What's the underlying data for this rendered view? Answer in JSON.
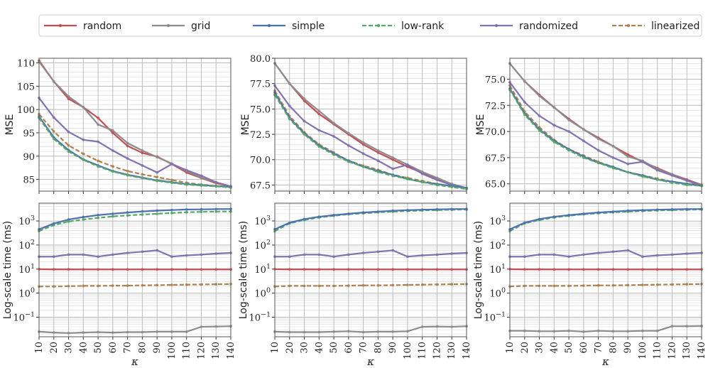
{
  "chart_data": {
    "type": "line",
    "legend": {
      "position": "top",
      "entries": [
        {
          "name": "random",
          "color": "#c44e52",
          "dash": false
        },
        {
          "name": "grid",
          "color": "#8c8c8c",
          "dash": false
        },
        {
          "name": "simple",
          "color": "#4c72b0",
          "dash": false
        },
        {
          "name": "low-rank",
          "color": "#55a868",
          "dash": true
        },
        {
          "name": "randomized",
          "color": "#8172b2",
          "dash": false
        },
        {
          "name": "linearized",
          "color": "#b08050",
          "dash": true
        }
      ]
    },
    "x": [
      10,
      20,
      30,
      40,
      50,
      60,
      70,
      80,
      90,
      100,
      110,
      120,
      130,
      140
    ],
    "xlabel": "κ",
    "xticks": [
      "10",
      "20",
      "30",
      "40",
      "50",
      "60",
      "70",
      "80",
      "90",
      "100",
      "110",
      "120",
      "130",
      "140"
    ],
    "panels": [
      {
        "id": "mse-1",
        "ylabel": "MSE",
        "scale": "linear",
        "ylim": [
          82.5,
          111
        ],
        "yticks": [
          {
            "v": 85,
            "label": "85"
          },
          {
            "v": 90,
            "label": "90"
          },
          {
            "v": 95,
            "label": "95"
          },
          {
            "v": 100,
            "label": "100"
          },
          {
            "v": 105,
            "label": "105"
          },
          {
            "v": 110,
            "label": "110"
          }
        ],
        "series": [
          {
            "name": "random",
            "values": [
              110.5,
              106,
              102.3,
              100.5,
              98.2,
              95,
              92.2,
              90.7,
              89.9,
              88.3,
              86.5,
              85.3,
              84.2,
              83.5
            ]
          },
          {
            "name": "grid",
            "values": [
              110.3,
              106,
              102.8,
              100.5,
              96.8,
              95.5,
              92.8,
              91.2,
              89.8,
              88.4,
              86.8,
              85.4,
              84.4,
              83.5
            ]
          },
          {
            "name": "randomized",
            "values": [
              102.5,
              98.3,
              95.2,
              93.5,
              93.1,
              91.2,
              89.5,
              88,
              86.5,
              88.3,
              87,
              85.8,
              84.4,
              83.5
            ]
          },
          {
            "name": "linearized",
            "values": [
              99,
              95.3,
              92.3,
              90.5,
              89,
              87.8,
              86.8,
              86.1,
              85.5,
              84.9,
              84.3,
              83.9,
              83.6,
              83.4
            ]
          },
          {
            "name": "simple",
            "values": [
              98.5,
              94,
              91.3,
              89.3,
              88,
              86.8,
              86,
              85.4,
              84.8,
              84.4,
              84,
              83.8,
              83.6,
              83.4
            ]
          },
          {
            "name": "low-rank",
            "values": [
              98.2,
              93.7,
              91,
              89.2,
              87.8,
              86.7,
              85.9,
              85.3,
              84.7,
              84.3,
              83.9,
              83.7,
              83.5,
              83.3
            ]
          }
        ]
      },
      {
        "id": "mse-2",
        "ylabel": "MSE",
        "scale": "linear",
        "ylim": [
          66.9,
          80
        ],
        "yticks": [
          {
            "v": 67.5,
            "label": "67.5"
          },
          {
            "v": 70,
            "label": "70.0"
          },
          {
            "v": 72.5,
            "label": "72.5"
          },
          {
            "v": 75,
            "label": "75.0"
          },
          {
            "v": 77.5,
            "label": "77.5"
          },
          {
            "v": 80,
            "label": "80.0"
          }
        ],
        "series": [
          {
            "name": "random",
            "values": [
              79.5,
              77.5,
              75.8,
              74.5,
              73.5,
              72.5,
              71.5,
              70.7,
              70,
              69.3,
              68.7,
              68.1,
              67.6,
              67.2
            ]
          },
          {
            "name": "grid",
            "values": [
              79.5,
              77.5,
              76,
              74.8,
              73.6,
              72.6,
              71.7,
              70.9,
              70.2,
              69.5,
              68.8,
              68.2,
              67.6,
              67.2
            ]
          },
          {
            "name": "randomized",
            "values": [
              77.3,
              75.3,
              73.8,
              72.9,
              72.3,
              71.4,
              70.6,
              69.9,
              69.1,
              69.5,
              68.6,
              68,
              67.5,
              67.2
            ]
          },
          {
            "name": "linearized",
            "values": [
              76.8,
              74.3,
              72.7,
              71.5,
              70.7,
              69.9,
              69.4,
              69,
              68.5,
              68.2,
              67.9,
              67.6,
              67.4,
              67.2
            ]
          },
          {
            "name": "simple",
            "values": [
              76.6,
              74.1,
              72.6,
              71.4,
              70.6,
              69.9,
              69.3,
              68.9,
              68.5,
              68.1,
              67.8,
              67.6,
              67.4,
              67.2
            ]
          },
          {
            "name": "low-rank",
            "values": [
              76.4,
              74,
              72.5,
              71.3,
              70.5,
              69.8,
              69.3,
              68.8,
              68.4,
              68.1,
              67.8,
              67.5,
              67.3,
              67.1
            ]
          }
        ]
      },
      {
        "id": "mse-3",
        "ylabel": "MSE",
        "scale": "linear",
        "ylim": [
          64.3,
          77
        ],
        "yticks": [
          {
            "v": 65,
            "label": "65.0"
          },
          {
            "v": 67.5,
            "label": "67.5"
          },
          {
            "v": 70,
            "label": "70.0"
          },
          {
            "v": 72.5,
            "label": "72.5"
          },
          {
            "v": 75,
            "label": "75.0"
          }
        ],
        "series": [
          {
            "name": "random",
            "values": [
              76.5,
              74.8,
              73.5,
              72.3,
              71.2,
              70.2,
              69.4,
              68.6,
              67.8,
              67.1,
              66.5,
              65.9,
              65.4,
              64.9
            ]
          },
          {
            "name": "grid",
            "values": [
              76.5,
              74.8,
              73.4,
              72.3,
              71.1,
              70.2,
              69.3,
              68.6,
              67.6,
              67.2,
              66.4,
              65.9,
              65.3,
              64.8
            ]
          },
          {
            "name": "randomized",
            "values": [
              74.7,
              72.8,
              71.5,
              70.6,
              70,
              69.1,
              68.2,
              67.5,
              66.9,
              67.1,
              66.3,
              65.8,
              65.3,
              64.9
            ]
          },
          {
            "name": "linearized",
            "values": [
              74.4,
              71.9,
              70.4,
              69.2,
              68.3,
              67.7,
              67.1,
              66.6,
              66.1,
              65.8,
              65.5,
              65.2,
              65,
              64.9
            ]
          },
          {
            "name": "simple",
            "values": [
              74.1,
              71.7,
              70.2,
              69.1,
              68.3,
              67.6,
              67,
              66.6,
              66.1,
              65.8,
              65.4,
              65.2,
              65,
              64.8
            ]
          },
          {
            "name": "low-rank",
            "values": [
              74,
              71.6,
              70.1,
              69,
              68.2,
              67.5,
              67,
              66.5,
              66.1,
              65.7,
              65.4,
              65.1,
              64.9,
              64.8
            ]
          }
        ]
      },
      {
        "id": "time-1",
        "ylabel": "Log-scale time (ms)",
        "scale": "log",
        "ylim": [
          0.0154,
          5500
        ],
        "yticks": [
          {
            "v": 0.1,
            "label": "10^-1"
          },
          {
            "v": 1,
            "label": "10^0"
          },
          {
            "v": 10,
            "label": "10^1"
          },
          {
            "v": 100,
            "label": "10^2"
          },
          {
            "v": 1000,
            "label": "10^3"
          }
        ],
        "series": [
          {
            "name": "grid",
            "values": [
              0.025,
              0.023,
              0.022,
              0.023,
              0.024,
              0.023,
              0.024,
              0.024,
              0.025,
              0.025,
              0.025,
              0.04,
              0.041,
              0.042
            ]
          },
          {
            "name": "linearized",
            "values": [
              1.9,
              1.9,
              1.95,
              2,
              2,
              2.05,
              2.05,
              2.1,
              2.15,
              2.2,
              2.25,
              2.3,
              2.35,
              2.4
            ]
          },
          {
            "name": "random",
            "values": [
              10,
              9.8,
              9.8,
              9.7,
              9.7,
              9.7,
              9.7,
              9.7,
              9.7,
              9.7,
              9.7,
              9.7,
              9.7,
              9.7
            ]
          },
          {
            "name": "randomized",
            "values": [
              33,
              33,
              40,
              40,
              33,
              40,
              47,
              53,
              60,
              33,
              37,
              40,
              44,
              47
            ]
          },
          {
            "name": "low-rank",
            "values": [
              380,
              680,
              950,
              1150,
              1350,
              1550,
              1700,
              1850,
              2000,
              2150,
              2300,
              2400,
              2450,
              2500
            ]
          },
          {
            "name": "simple",
            "values": [
              450,
              780,
              1150,
              1450,
              1750,
              2000,
              2250,
              2500,
              2700,
              2850,
              3000,
              3050,
              3100,
              3150
            ]
          }
        ]
      },
      {
        "id": "time-2",
        "ylabel": "Log-scale time (ms)",
        "scale": "log",
        "ylim": [
          0.0154,
          5500
        ],
        "yticks": [
          {
            "v": 0.1,
            "label": "10^-1"
          },
          {
            "v": 1,
            "label": "10^0"
          },
          {
            "v": 10,
            "label": "10^1"
          },
          {
            "v": 100,
            "label": "10^2"
          },
          {
            "v": 1000,
            "label": "10^3"
          }
        ],
        "series": [
          {
            "name": "grid",
            "values": [
              0.025,
              0.024,
              0.024,
              0.024,
              0.025,
              0.026,
              0.024,
              0.025,
              0.025,
              0.026,
              0.04,
              0.041,
              0.04,
              0.042
            ]
          },
          {
            "name": "linearized",
            "values": [
              1.9,
              2,
              2,
              2,
              2,
              2.05,
              2.1,
              2.1,
              2.15,
              2.2,
              2.25,
              2.3,
              2.35,
              2.4
            ]
          },
          {
            "name": "random",
            "values": [
              10,
              9.8,
              9.8,
              9.7,
              9.7,
              9.7,
              9.7,
              9.7,
              9.7,
              9.7,
              9.7,
              9.7,
              9.7,
              9.7
            ]
          },
          {
            "name": "randomized",
            "values": [
              33,
              33,
              40,
              40,
              33,
              40,
              47,
              53,
              60,
              33,
              37,
              40,
              44,
              47
            ]
          },
          {
            "name": "low-rank",
            "values": [
              380,
              800,
              1100,
              1400,
              1650,
              1900,
              2100,
              2300,
              2450,
              2600,
              2750,
              2850,
              2950,
              3000
            ]
          },
          {
            "name": "simple",
            "values": [
              450,
              850,
              1200,
              1500,
              1750,
              2000,
              2250,
              2450,
              2650,
              2800,
              2950,
              3050,
              3100,
              3150
            ]
          }
        ]
      },
      {
        "id": "time-3",
        "ylabel": "Log-scale time (ms)",
        "scale": "log",
        "ylim": [
          0.0154,
          5500
        ],
        "yticks": [
          {
            "v": 0.1,
            "label": "10^-1"
          },
          {
            "v": 1,
            "label": "10^0"
          },
          {
            "v": 10,
            "label": "10^1"
          },
          {
            "v": 100,
            "label": "10^2"
          },
          {
            "v": 1000,
            "label": "10^3"
          }
        ],
        "series": [
          {
            "name": "grid",
            "values": [
              0.027,
              0.027,
              0.026,
              0.026,
              0.027,
              0.025,
              0.027,
              0.026,
              0.026,
              0.027,
              0.027,
              0.042,
              0.042,
              0.043
            ]
          },
          {
            "name": "linearized",
            "values": [
              1.9,
              2,
              2,
              2,
              2,
              2.05,
              2.1,
              2.1,
              2.15,
              2.2,
              2.25,
              2.3,
              2.35,
              2.4
            ]
          },
          {
            "name": "random",
            "values": [
              10,
              9.8,
              9.8,
              9.7,
              9.7,
              9.7,
              9.7,
              9.7,
              9.7,
              9.7,
              9.7,
              9.7,
              9.7,
              9.7
            ]
          },
          {
            "name": "randomized",
            "values": [
              33,
              33,
              40,
              40,
              33,
              40,
              47,
              53,
              60,
              33,
              37,
              40,
              44,
              47
            ]
          },
          {
            "name": "low-rank",
            "values": [
              380,
              800,
              1100,
              1400,
              1650,
              1900,
              2100,
              2300,
              2450,
              2600,
              2750,
              2850,
              2950,
              3000
            ]
          },
          {
            "name": "simple",
            "values": [
              450,
              850,
              1200,
              1500,
              1750,
              2000,
              2250,
              2450,
              2650,
              2800,
              2950,
              3050,
              3100,
              3150
            ]
          }
        ]
      }
    ]
  }
}
